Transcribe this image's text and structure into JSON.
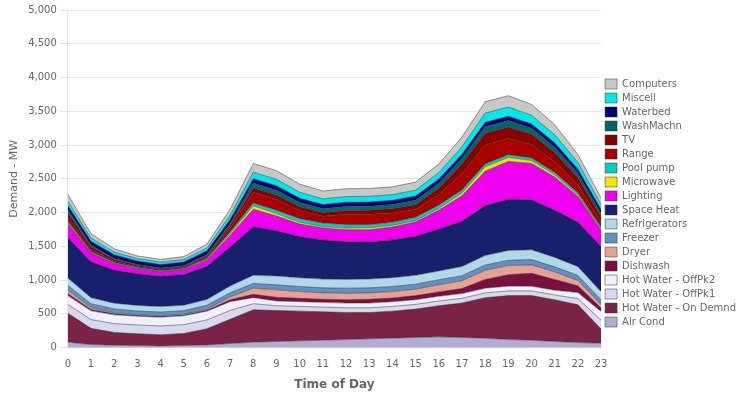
{
  "chart_data": {
    "type": "area",
    "stacked": true,
    "xlabel": "Time of Day",
    "ylabel": "Demand - MW",
    "x": [
      0,
      1,
      2,
      3,
      4,
      5,
      6,
      7,
      8,
      9,
      10,
      11,
      12,
      13,
      14,
      15,
      16,
      17,
      18,
      19,
      20,
      21,
      22,
      23
    ],
    "xlim": [
      0,
      23
    ],
    "xticks": [
      0,
      1,
      2,
      3,
      4,
      5,
      6,
      7,
      8,
      9,
      10,
      11,
      12,
      13,
      14,
      15,
      16,
      17,
      18,
      19,
      20,
      21,
      22,
      23
    ],
    "ylim": [
      0,
      5000
    ],
    "yticks": [
      0,
      500,
      {
        "value": 1000,
        "label": "1,000"
      },
      {
        "value": 1500,
        "label": "1,500"
      },
      {
        "value": 2000,
        "label": "2,000"
      },
      {
        "value": 2500,
        "label": "2,500"
      },
      {
        "value": 3000,
        "label": "3,000"
      },
      {
        "value": 3500,
        "label": "3,500"
      },
      {
        "value": 4000,
        "label": "4,000"
      },
      {
        "value": 4500,
        "label": "4,500"
      },
      {
        "value": 5000,
        "label": "5,000"
      }
    ],
    "grid": "y",
    "legend": "right",
    "series": [
      {
        "name": "Air Cond",
        "color": "#b0aed0",
        "values": [
          80,
          45,
          35,
          30,
          25,
          30,
          40,
          60,
          80,
          90,
          100,
          110,
          120,
          130,
          140,
          150,
          160,
          150,
          140,
          120,
          110,
          90,
          75,
          65
        ]
      },
      {
        "name": "Hot Water - On Demnd",
        "color": "#7b2346",
        "values": [
          430,
          240,
          190,
          175,
          165,
          180,
          240,
          360,
          480,
          460,
          440,
          420,
          400,
          390,
          400,
          420,
          460,
          510,
          600,
          650,
          660,
          620,
          560,
          210
        ]
      },
      {
        "name": "Hot Water - OffPk1",
        "color": "#d8d8f0",
        "values": [
          130,
          130,
          130,
          130,
          130,
          130,
          130,
          130,
          90,
          70,
          70,
          70,
          70,
          70,
          70,
          70,
          70,
          70,
          70,
          70,
          70,
          70,
          90,
          130
        ]
      },
      {
        "name": "Hot Water - OffPk2",
        "color": "#f0f0fa",
        "values": [
          130,
          130,
          130,
          130,
          130,
          130,
          130,
          130,
          90,
          70,
          70,
          70,
          70,
          70,
          70,
          70,
          70,
          70,
          70,
          70,
          70,
          70,
          90,
          130
        ]
      },
      {
        "name": "Dishwash",
        "color": "#7b1040",
        "values": [
          30,
          20,
          15,
          10,
          10,
          10,
          15,
          30,
          50,
          55,
          50,
          45,
          50,
          55,
          55,
          60,
          65,
          75,
          130,
          170,
          190,
          160,
          100,
          50
        ]
      },
      {
        "name": "Dryer",
        "color": "#e8a090",
        "values": [
          50,
          25,
          15,
          12,
          12,
          12,
          15,
          40,
          90,
          110,
          100,
          95,
          95,
          95,
          95,
          95,
          105,
          115,
          135,
          135,
          125,
          110,
          80,
          50
        ]
      },
      {
        "name": "Freezer",
        "color": "#6090c8",
        "values": [
          70,
          60,
          58,
          55,
          55,
          55,
          58,
          62,
          70,
          75,
          75,
          75,
          75,
          75,
          75,
          75,
          75,
          75,
          78,
          78,
          78,
          76,
          74,
          72
        ]
      },
      {
        "name": "Refrigerators",
        "color": "#b0d8e8",
        "values": [
          110,
          90,
          85,
          82,
          80,
          80,
          85,
          100,
          120,
          130,
          130,
          130,
          130,
          130,
          130,
          130,
          130,
          135,
          140,
          145,
          145,
          140,
          130,
          120
        ]
      },
      {
        "name": "Space Heat",
        "color": "#18206e",
        "values": [
          600,
          530,
          490,
          470,
          450,
          455,
          490,
          580,
          720,
          670,
          610,
          580,
          560,
          550,
          560,
          580,
          620,
          670,
          740,
          760,
          740,
          700,
          660,
          670
        ]
      },
      {
        "name": "Lighting",
        "color": "#ee00ee",
        "values": [
          200,
          130,
          95,
          75,
          65,
          70,
          95,
          170,
          260,
          220,
          185,
          175,
          175,
          180,
          190,
          210,
          280,
          380,
          510,
          560,
          540,
          490,
          380,
          240
        ]
      },
      {
        "name": "Microwave",
        "color": "#e8e800",
        "values": [
          15,
          8,
          6,
          6,
          6,
          8,
          12,
          25,
          50,
          35,
          25,
          20,
          25,
          30,
          25,
          20,
          25,
          40,
          65,
          58,
          42,
          33,
          25,
          20
        ]
      },
      {
        "name": "Pool pump",
        "color": "#00cccc",
        "values": [
          25,
          15,
          12,
          12,
          12,
          12,
          15,
          25,
          40,
          50,
          55,
          55,
          50,
          45,
          45,
          50,
          50,
          45,
          42,
          42,
          38,
          33,
          28,
          25
        ]
      },
      {
        "name": "Range",
        "color": "#aa0000",
        "values": [
          60,
          30,
          18,
          15,
          15,
          18,
          22,
          60,
          160,
          160,
          120,
          100,
          155,
          155,
          140,
          115,
          155,
          240,
          280,
          240,
          200,
          160,
          120,
          80
        ]
      },
      {
        "name": "TV",
        "color": "#880000",
        "values": [
          65,
          40,
          24,
          16,
          12,
          12,
          16,
          32,
          65,
          65,
          56,
          52,
          56,
          60,
          64,
          72,
          96,
          145,
          176,
          168,
          152,
          136,
          104,
          72
        ]
      },
      {
        "name": "WashMachn",
        "color": "#006868",
        "values": [
          45,
          22,
          15,
          12,
          12,
          12,
          15,
          32,
          72,
          72,
          64,
          60,
          60,
          60,
          60,
          64,
          72,
          80,
          96,
          96,
          88,
          80,
          64,
          48
        ]
      },
      {
        "name": "Waterbed",
        "color": "#000078",
        "values": [
          65,
          60,
          58,
          52,
          52,
          52,
          55,
          60,
          65,
          65,
          63,
          62,
          62,
          62,
          62,
          63,
          63,
          63,
          65,
          65,
          65,
          65,
          65,
          65
        ]
      },
      {
        "name": "Miscell",
        "color": "#00e8e8",
        "values": [
          65,
          48,
          40,
          36,
          36,
          38,
          44,
          65,
          96,
          96,
          88,
          84,
          84,
          84,
          84,
          88,
          96,
          112,
          136,
          136,
          128,
          120,
          96,
          72
        ]
      },
      {
        "name": "Computers",
        "color": "#c8c8c8",
        "values": [
          100,
          65,
          48,
          40,
          40,
          44,
          56,
          88,
          128,
          128,
          120,
          116,
          116,
          116,
          116,
          120,
          128,
          144,
          168,
          168,
          160,
          148,
          120,
          96
        ]
      }
    ]
  }
}
